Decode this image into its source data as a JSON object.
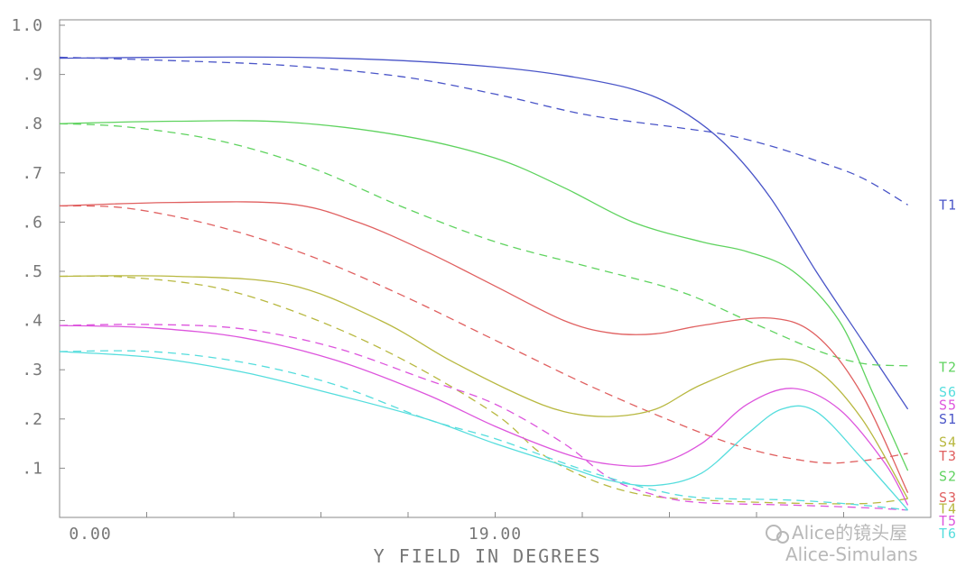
{
  "chart_data": {
    "type": "line",
    "xlabel": "Y FIELD IN DEGREES",
    "x_tick_labels": [
      "0.00",
      "19.00"
    ],
    "y_tick_labels": [
      "1.0",
      ".9",
      ".8",
      ".7",
      ".6",
      ".5",
      ".4",
      ".3",
      ".2",
      ".1"
    ],
    "xlim": [
      0,
      38
    ],
    "ylim": [
      0,
      1.0
    ],
    "grid": false,
    "series": [
      {
        "name": "S1",
        "color": "#4a55c8",
        "dash": false,
        "points": [
          [
            0,
            0.933
          ],
          [
            5,
            0.935
          ],
          [
            10,
            0.935
          ],
          [
            15,
            0.928
          ],
          [
            19,
            0.915
          ],
          [
            22,
            0.898
          ],
          [
            25,
            0.87
          ],
          [
            27,
            0.83
          ],
          [
            29,
            0.76
          ],
          [
            31,
            0.65
          ],
          [
            33,
            0.5
          ],
          [
            35,
            0.36
          ],
          [
            37,
            0.22
          ]
        ]
      },
      {
        "name": "T1",
        "color": "#4a55c8",
        "dash": true,
        "points": [
          [
            0,
            0.935
          ],
          [
            5,
            0.928
          ],
          [
            10,
            0.918
          ],
          [
            15,
            0.895
          ],
          [
            19,
            0.86
          ],
          [
            23,
            0.818
          ],
          [
            27,
            0.792
          ],
          [
            29,
            0.778
          ],
          [
            31,
            0.755
          ],
          [
            33,
            0.725
          ],
          [
            35,
            0.69
          ],
          [
            37,
            0.635
          ]
        ]
      },
      {
        "name": "S2",
        "color": "#5fd35f",
        "dash": false,
        "points": [
          [
            0,
            0.8
          ],
          [
            5,
            0.805
          ],
          [
            10,
            0.803
          ],
          [
            15,
            0.775
          ],
          [
            19,
            0.73
          ],
          [
            22,
            0.67
          ],
          [
            25,
            0.6
          ],
          [
            28,
            0.56
          ],
          [
            30,
            0.54
          ],
          [
            32,
            0.5
          ],
          [
            34,
            0.4
          ],
          [
            35.5,
            0.25
          ],
          [
            37,
            0.095
          ]
        ]
      },
      {
        "name": "T2",
        "color": "#5fd35f",
        "dash": true,
        "points": [
          [
            0,
            0.8
          ],
          [
            3,
            0.793
          ],
          [
            7,
            0.765
          ],
          [
            11,
            0.71
          ],
          [
            15,
            0.63
          ],
          [
            19,
            0.56
          ],
          [
            23,
            0.51
          ],
          [
            27,
            0.46
          ],
          [
            30,
            0.4
          ],
          [
            33,
            0.34
          ],
          [
            35,
            0.313
          ],
          [
            37,
            0.308
          ]
        ]
      },
      {
        "name": "S3",
        "color": "#e06060",
        "dash": false,
        "points": [
          [
            0,
            0.633
          ],
          [
            5,
            0.64
          ],
          [
            10,
            0.637
          ],
          [
            13,
            0.6
          ],
          [
            16,
            0.54
          ],
          [
            19,
            0.47
          ],
          [
            22,
            0.4
          ],
          [
            24,
            0.375
          ],
          [
            26,
            0.373
          ],
          [
            28,
            0.39
          ],
          [
            31,
            0.405
          ],
          [
            33,
            0.37
          ],
          [
            35,
            0.25
          ],
          [
            37,
            0.05
          ]
        ]
      },
      {
        "name": "T3",
        "color": "#e06060",
        "dash": true,
        "points": [
          [
            0,
            0.633
          ],
          [
            3,
            0.628
          ],
          [
            7,
            0.59
          ],
          [
            11,
            0.53
          ],
          [
            15,
            0.45
          ],
          [
            19,
            0.36
          ],
          [
            23,
            0.27
          ],
          [
            27,
            0.19
          ],
          [
            30,
            0.14
          ],
          [
            33,
            0.112
          ],
          [
            35,
            0.115
          ],
          [
            37,
            0.13
          ]
        ]
      },
      {
        "name": "S4",
        "color": "#b8b840",
        "dash": false,
        "points": [
          [
            0,
            0.49
          ],
          [
            5,
            0.49
          ],
          [
            10,
            0.473
          ],
          [
            14,
            0.4
          ],
          [
            17,
            0.32
          ],
          [
            20,
            0.25
          ],
          [
            22,
            0.215
          ],
          [
            24,
            0.205
          ],
          [
            26,
            0.22
          ],
          [
            28,
            0.27
          ],
          [
            31,
            0.32
          ],
          [
            33,
            0.3
          ],
          [
            35,
            0.2
          ],
          [
            37,
            0.038
          ]
        ]
      },
      {
        "name": "T4",
        "color": "#b8b840",
        "dash": true,
        "points": [
          [
            0,
            0.49
          ],
          [
            3,
            0.488
          ],
          [
            7,
            0.465
          ],
          [
            11,
            0.405
          ],
          [
            15,
            0.32
          ],
          [
            19,
            0.21
          ],
          [
            21,
            0.13
          ],
          [
            23,
            0.08
          ],
          [
            25,
            0.05
          ],
          [
            27,
            0.038
          ],
          [
            31,
            0.03
          ],
          [
            35,
            0.028
          ],
          [
            37,
            0.038
          ]
        ]
      },
      {
        "name": "S5",
        "color": "#dd55dd",
        "dash": false,
        "points": [
          [
            0,
            0.39
          ],
          [
            4,
            0.385
          ],
          [
            8,
            0.365
          ],
          [
            12,
            0.32
          ],
          [
            16,
            0.25
          ],
          [
            19,
            0.185
          ],
          [
            22,
            0.13
          ],
          [
            24,
            0.108
          ],
          [
            26,
            0.108
          ],
          [
            28,
            0.15
          ],
          [
            30,
            0.23
          ],
          [
            32,
            0.262
          ],
          [
            34,
            0.22
          ],
          [
            36,
            0.11
          ],
          [
            37,
            0.025
          ]
        ]
      },
      {
        "name": "T5",
        "color": "#dd55dd",
        "dash": true,
        "points": [
          [
            0,
            0.39
          ],
          [
            4,
            0.392
          ],
          [
            8,
            0.383
          ],
          [
            12,
            0.345
          ],
          [
            16,
            0.28
          ],
          [
            19,
            0.23
          ],
          [
            22,
            0.15
          ],
          [
            24,
            0.08
          ],
          [
            26,
            0.045
          ],
          [
            28,
            0.03
          ],
          [
            32,
            0.025
          ],
          [
            35,
            0.02
          ],
          [
            37,
            0.015
          ]
        ]
      },
      {
        "name": "S6",
        "color": "#55dddd",
        "dash": false,
        "points": [
          [
            0,
            0.337
          ],
          [
            4,
            0.325
          ],
          [
            8,
            0.295
          ],
          [
            12,
            0.25
          ],
          [
            16,
            0.2
          ],
          [
            19,
            0.15
          ],
          [
            22,
            0.105
          ],
          [
            24,
            0.075
          ],
          [
            26,
            0.065
          ],
          [
            28,
            0.09
          ],
          [
            30,
            0.17
          ],
          [
            31.5,
            0.22
          ],
          [
            33,
            0.215
          ],
          [
            35,
            0.12
          ],
          [
            37,
            0.015
          ]
        ]
      },
      {
        "name": "T6",
        "color": "#55dddd",
        "dash": true,
        "points": [
          [
            0,
            0.337
          ],
          [
            4,
            0.337
          ],
          [
            8,
            0.315
          ],
          [
            12,
            0.27
          ],
          [
            16,
            0.2
          ],
          [
            19,
            0.16
          ],
          [
            22,
            0.11
          ],
          [
            24,
            0.08
          ],
          [
            26,
            0.055
          ],
          [
            28,
            0.04
          ],
          [
            32,
            0.035
          ],
          [
            35,
            0.025
          ],
          [
            37,
            0.015
          ]
        ]
      }
    ],
    "series_labels": [
      {
        "text": "T1",
        "color": "#4a55c8",
        "y": 0.635
      },
      {
        "text": "T2",
        "color": "#5fd35f",
        "y": 0.305
      },
      {
        "text": "S6",
        "color": "#55dddd",
        "y": 0.255
      },
      {
        "text": "S5",
        "color": "#dd55dd",
        "y": 0.228
      },
      {
        "text": "S1",
        "color": "#4a55c8",
        "y": 0.2
      },
      {
        "text": "S4",
        "color": "#b8b840",
        "y": 0.153
      },
      {
        "text": "T3",
        "color": "#e06060",
        "y": 0.125
      },
      {
        "text": "S2",
        "color": "#5fd35f",
        "y": 0.083
      },
      {
        "text": "S3",
        "color": "#e06060",
        "y": 0.04
      },
      {
        "text": "T4",
        "color": "#b8b840",
        "y": 0.017
      },
      {
        "text": "T5",
        "color": "#dd55dd",
        "y": -0.007
      },
      {
        "text": "T6",
        "color": "#55dddd",
        "y": -0.033
      }
    ]
  },
  "watermark": {
    "line1": "Alice的镜头屋",
    "line2": "Alice-Simulans"
  }
}
